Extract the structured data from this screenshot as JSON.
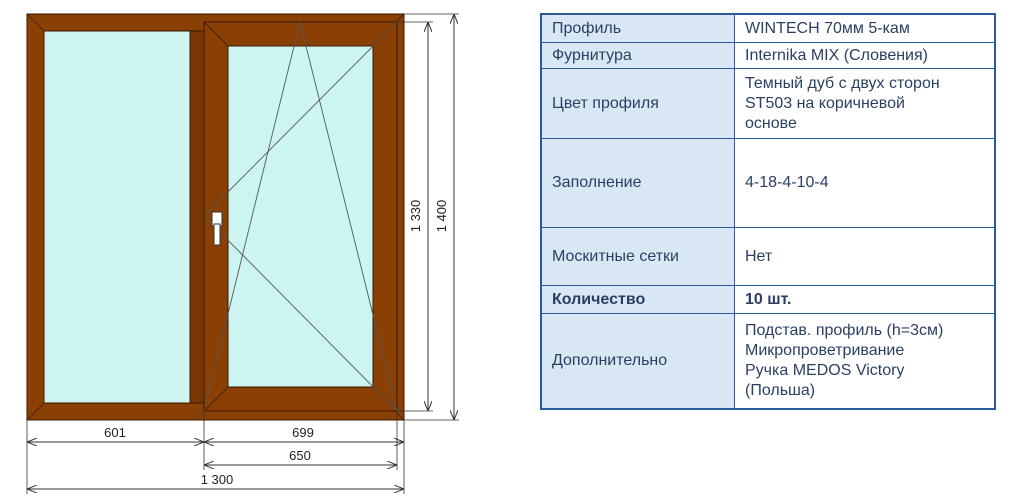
{
  "colors": {
    "frame": "#8a3f05",
    "glass": "#ccf5f2",
    "table_border": "#2a5a9c",
    "label_bg": "#d9e7f5",
    "text": "#2a3f63"
  },
  "dimensions": {
    "height_total": "1 400",
    "height_sash": "1 330",
    "width_left": "601",
    "width_right": "699",
    "width_sash_glass": "650",
    "width_total": "1 300"
  },
  "specs": {
    "profile": {
      "label": "Профиль",
      "value": "WINTECH 70мм 5-кам"
    },
    "hardware": {
      "label": "Фурнитура",
      "value": "Internika MIX (Словения)"
    },
    "color": {
      "label": "Цвет профиля",
      "lines": [
        "Темный дуб с двух сторон",
        "ST503 на коричневой",
        "основе"
      ]
    },
    "filling": {
      "label": "Заполнение",
      "value": "4-18-4-10-4"
    },
    "mosquito": {
      "label": "Москитные сетки",
      "value": "Нет"
    },
    "quantity": {
      "label": "Количество",
      "value": "10 шт."
    },
    "extra": {
      "label": "Дополнительно",
      "lines": [
        "Подстав. профиль (h=3см)",
        "Микропроветривание",
        "Ручка MEDOS Victory",
        "(Польша)"
      ]
    }
  }
}
